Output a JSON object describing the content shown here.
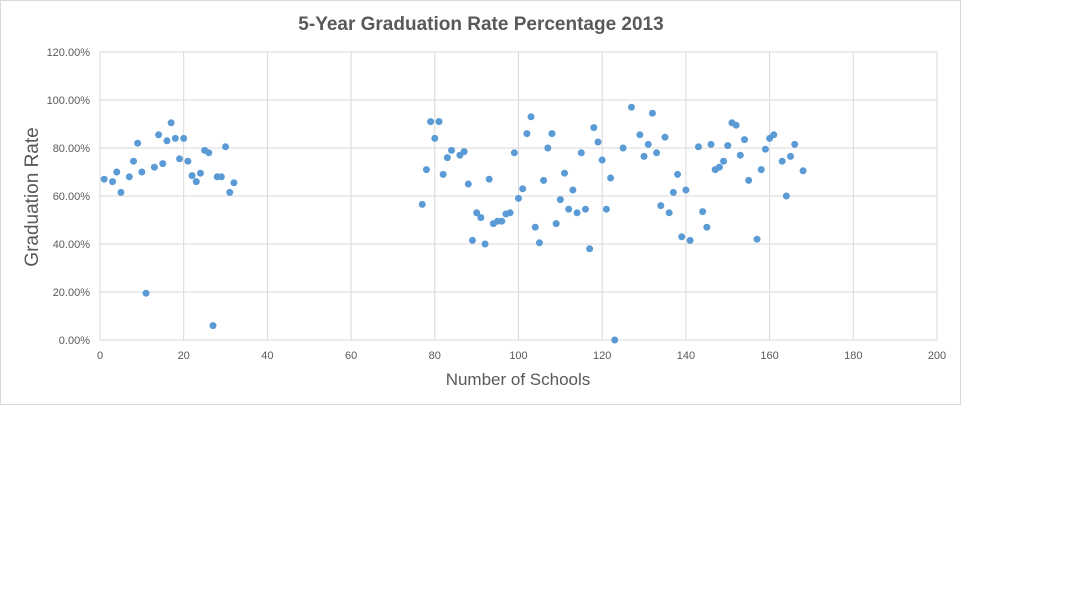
{
  "chart_data": {
    "type": "scatter",
    "title": "5-Year Graduation  Rate Percentage 2013",
    "xlabel": "Number of Schools",
    "ylabel": "Graduation Rate",
    "xlim": [
      0,
      200
    ],
    "ylim": [
      0,
      1.2
    ],
    "x_ticks": [
      0,
      20,
      40,
      60,
      80,
      100,
      120,
      140,
      160,
      180,
      200
    ],
    "y_ticks": [
      0,
      0.2,
      0.4,
      0.6,
      0.8,
      1.0,
      1.2
    ],
    "x_tick_labels": [
      "0",
      "20",
      "40",
      "60",
      "80",
      "100",
      "120",
      "140",
      "160",
      "180",
      "200"
    ],
    "y_tick_labels": [
      "0.00%",
      "20.00%",
      "40.00%",
      "60.00%",
      "80.00%",
      "100.00%",
      "120.00%"
    ],
    "grid": "major gridlines on both axes",
    "legend": "none",
    "marker_color": "#5b9bd5",
    "points": [
      [
        1,
        0.67
      ],
      [
        3,
        0.66
      ],
      [
        4,
        0.7
      ],
      [
        5,
        0.615
      ],
      [
        7,
        0.68
      ],
      [
        8,
        0.745
      ],
      [
        9,
        0.82
      ],
      [
        10,
        0.7
      ],
      [
        11,
        0.195
      ],
      [
        13,
        0.72
      ],
      [
        14,
        0.855
      ],
      [
        15,
        0.735
      ],
      [
        16,
        0.83
      ],
      [
        17,
        0.905
      ],
      [
        18,
        0.84
      ],
      [
        19,
        0.755
      ],
      [
        20,
        0.84
      ],
      [
        21,
        0.745
      ],
      [
        22,
        0.685
      ],
      [
        23,
        0.66
      ],
      [
        24,
        0.695
      ],
      [
        25,
        0.79
      ],
      [
        26,
        0.78
      ],
      [
        27,
        0.06
      ],
      [
        28,
        0.68
      ],
      [
        29,
        0.68
      ],
      [
        30,
        0.805
      ],
      [
        31,
        0.615
      ],
      [
        32,
        0.655
      ],
      [
        77,
        0.565
      ],
      [
        78,
        0.71
      ],
      [
        79,
        0.91
      ],
      [
        80,
        0.84
      ],
      [
        81,
        0.91
      ],
      [
        82,
        0.69
      ],
      [
        83,
        0.76
      ],
      [
        84,
        0.79
      ],
      [
        86,
        0.77
      ],
      [
        87,
        0.785
      ],
      [
        88,
        0.65
      ],
      [
        89,
        0.415
      ],
      [
        90,
        0.53
      ],
      [
        91,
        0.51
      ],
      [
        92,
        0.4
      ],
      [
        93,
        0.67
      ],
      [
        94,
        0.485
      ],
      [
        95,
        0.495
      ],
      [
        96,
        0.495
      ],
      [
        97,
        0.525
      ],
      [
        98,
        0.53
      ],
      [
        99,
        0.78
      ],
      [
        100,
        0.59
      ],
      [
        101,
        0.63
      ],
      [
        102,
        0.86
      ],
      [
        103,
        0.93
      ],
      [
        104,
        0.47
      ],
      [
        105,
        0.405
      ],
      [
        106,
        0.665
      ],
      [
        107,
        0.8
      ],
      [
        108,
        0.86
      ],
      [
        109,
        0.485
      ],
      [
        110,
        0.585
      ],
      [
        111,
        0.695
      ],
      [
        112,
        0.545
      ],
      [
        113,
        0.625
      ],
      [
        114,
        0.53
      ],
      [
        115,
        0.78
      ],
      [
        116,
        0.545
      ],
      [
        117,
        0.38
      ],
      [
        118,
        0.885
      ],
      [
        119,
        0.825
      ],
      [
        120,
        0.75
      ],
      [
        121,
        0.545
      ],
      [
        122,
        0.675
      ],
      [
        123,
        0.0
      ],
      [
        125,
        0.8
      ],
      [
        127,
        0.97
      ],
      [
        129,
        0.855
      ],
      [
        130,
        0.765
      ],
      [
        131,
        0.815
      ],
      [
        132,
        0.945
      ],
      [
        133,
        0.78
      ],
      [
        134,
        0.56
      ],
      [
        135,
        0.845
      ],
      [
        136,
        0.53
      ],
      [
        137,
        0.615
      ],
      [
        138,
        0.69
      ],
      [
        139,
        0.43
      ],
      [
        140,
        0.625
      ],
      [
        141,
        0.415
      ],
      [
        143,
        0.805
      ],
      [
        144,
        0.535
      ],
      [
        145,
        0.47
      ],
      [
        146,
        0.815
      ],
      [
        147,
        0.71
      ],
      [
        148,
        0.72
      ],
      [
        149,
        0.745
      ],
      [
        150,
        0.81
      ],
      [
        151,
        0.905
      ],
      [
        152,
        0.895
      ],
      [
        153,
        0.77
      ],
      [
        154,
        0.835
      ],
      [
        155,
        0.665
      ],
      [
        157,
        0.42
      ],
      [
        158,
        0.71
      ],
      [
        159,
        0.795
      ],
      [
        160,
        0.84
      ],
      [
        161,
        0.855
      ],
      [
        163,
        0.745
      ],
      [
        164,
        0.6
      ],
      [
        165,
        0.765
      ],
      [
        166,
        0.815
      ],
      [
        168,
        0.705
      ]
    ]
  }
}
